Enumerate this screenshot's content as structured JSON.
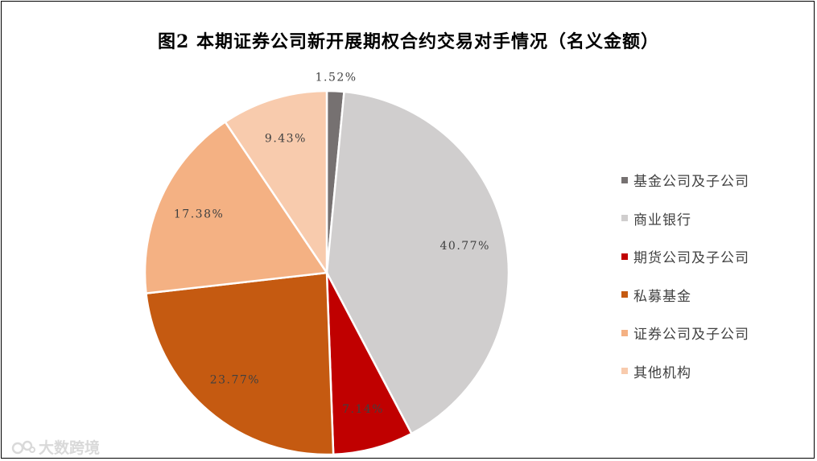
{
  "chart_data": {
    "type": "pie",
    "title": "图2  本期证券公司新开展期权合约交易对手情况（名义金额）",
    "series": [
      {
        "name": "基金公司及子公司",
        "value": 1.52,
        "label": "1.52%",
        "color": "#767171"
      },
      {
        "name": "商业银行",
        "value": 40.77,
        "label": "40.77%",
        "color": "#d0cece"
      },
      {
        "name": "期货公司及子公司",
        "value": 7.14,
        "label": "7.14%",
        "color": "#c00000"
      },
      {
        "name": "私募基金",
        "value": 23.77,
        "label": "23.77%",
        "color": "#c55a11"
      },
      {
        "name": "证券公司及子公司",
        "value": 17.38,
        "label": "17.38%",
        "color": "#f4b183"
      },
      {
        "name": "其他机构",
        "value": 9.43,
        "label": "9.43%",
        "color": "#f8cbad"
      }
    ],
    "legend_position": "right",
    "start_angle_deg": 0,
    "direction": "clockwise"
  },
  "watermark": {
    "text": "大数跨境"
  }
}
